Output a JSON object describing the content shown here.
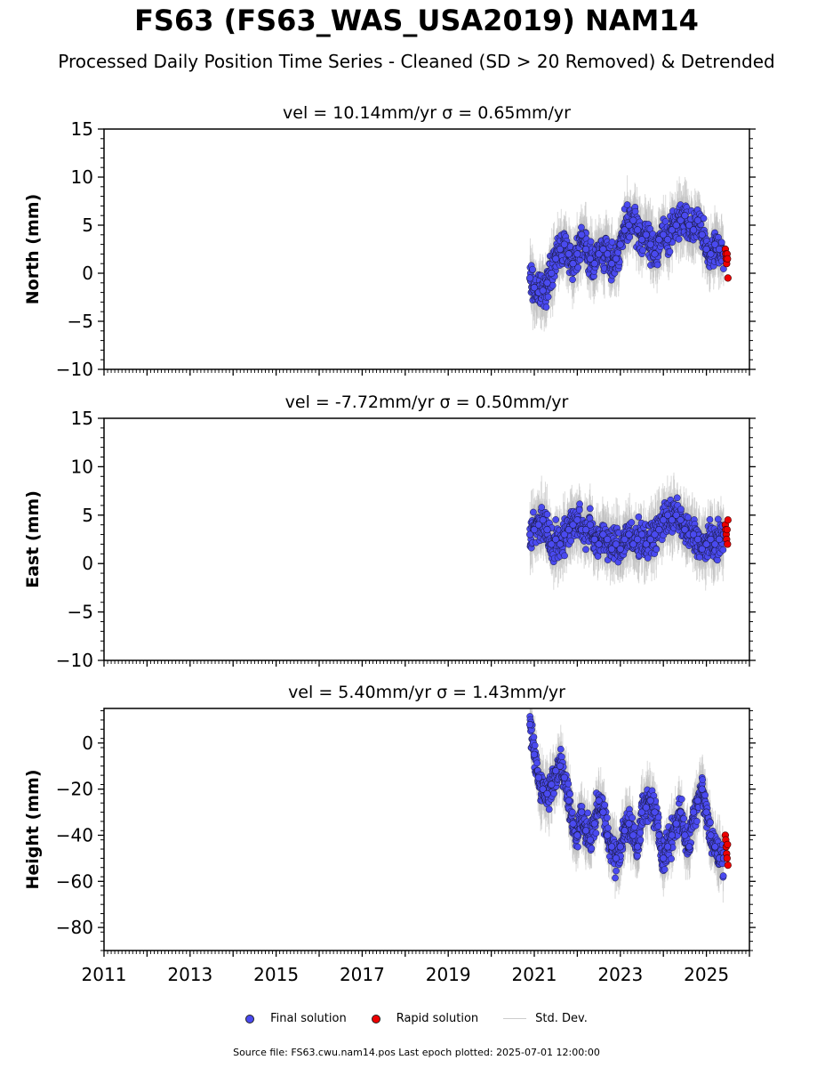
{
  "title": "FS63 (FS63_WAS_USA2019) NAM14",
  "subtitle": "Processed Daily Position Time Series - Cleaned (SD > 20 Removed) & Detrended",
  "colors": {
    "final": "#4a4af0",
    "rapid": "#ee0000",
    "stddev": "#bbbbbb"
  },
  "legend": {
    "final": "Final solution",
    "rapid": "Rapid solution",
    "stddev": "Std. Dev."
  },
  "footer": "Source file: FS63.cwu.nam14.pos  Last epoch plotted: 2025-07-01 12:00:00",
  "chart_data": [
    {
      "type": "scatter",
      "panel": "north",
      "title": "vel = 10.14mm/yr   σ = 0.65mm/yr",
      "ylabel": "North (mm)",
      "xlim": [
        2011,
        2026
      ],
      "ylim": [
        -10,
        15
      ],
      "yticks": [
        -10,
        -5,
        0,
        5,
        10,
        15
      ],
      "ytick_labels": [
        "−10",
        "−5",
        "0",
        "5",
        "10",
        "15"
      ],
      "xticks": [
        2011,
        2013,
        2015,
        2017,
        2019,
        2021,
        2023,
        2025
      ],
      "series": [
        {
          "name": "Final solution",
          "x": [
            2020.9,
            2021.0,
            2021.1,
            2021.2,
            2021.3,
            2021.4,
            2021.5,
            2021.6,
            2021.7,
            2021.8,
            2021.9,
            2022.0,
            2022.1,
            2022.2,
            2022.3,
            2022.4,
            2022.5,
            2022.6,
            2022.7,
            2022.8,
            2022.9,
            2023.0,
            2023.1,
            2023.2,
            2023.3,
            2023.4,
            2023.5,
            2023.6,
            2023.7,
            2023.8,
            2023.9,
            2024.0,
            2024.1,
            2024.2,
            2024.3,
            2024.4,
            2024.5,
            2024.6,
            2024.7,
            2024.8,
            2024.9,
            2025.0,
            2025.1,
            2025.2,
            2025.3,
            2025.4
          ],
          "y": [
            -0.5,
            -1.5,
            -2.0,
            -1.8,
            -1.0,
            0.0,
            1.5,
            2.5,
            3.0,
            2.0,
            1.0,
            2.0,
            4.0,
            2.5,
            1.5,
            1.0,
            2.0,
            2.5,
            2.0,
            1.0,
            1.5,
            3.0,
            4.5,
            5.0,
            5.5,
            4.5,
            3.5,
            4.0,
            3.0,
            2.0,
            3.5,
            4.0,
            3.5,
            4.5,
            5.0,
            5.5,
            6.0,
            5.0,
            4.5,
            5.5,
            4.0,
            2.5,
            2.0,
            3.0,
            2.5,
            2.0
          ]
        },
        {
          "name": "Rapid solution",
          "x": [
            2025.44,
            2025.45,
            2025.46,
            2025.47,
            2025.48,
            2025.49,
            2025.5
          ],
          "y": [
            2.5,
            2.0,
            1.5,
            1.0,
            2.0,
            1.5,
            -0.5
          ]
        }
      ]
    },
    {
      "type": "scatter",
      "panel": "east",
      "title": "vel = -7.72mm/yr   σ = 0.50mm/yr",
      "ylabel": "East (mm)",
      "xlim": [
        2011,
        2026
      ],
      "ylim": [
        -10,
        15
      ],
      "yticks": [
        -10,
        -5,
        0,
        5,
        10,
        15
      ],
      "ytick_labels": [
        "−10",
        "−5",
        "0",
        "5",
        "10",
        "15"
      ],
      "xticks": [
        2011,
        2013,
        2015,
        2017,
        2019,
        2021,
        2023,
        2025
      ],
      "series": [
        {
          "name": "Final solution",
          "x": [
            2020.9,
            2021.0,
            2021.1,
            2021.2,
            2021.3,
            2021.4,
            2021.5,
            2021.6,
            2021.7,
            2021.8,
            2021.9,
            2022.0,
            2022.1,
            2022.2,
            2022.3,
            2022.4,
            2022.5,
            2022.6,
            2022.7,
            2022.8,
            2022.9,
            2023.0,
            2023.1,
            2023.2,
            2023.3,
            2023.4,
            2023.5,
            2023.6,
            2023.7,
            2023.8,
            2023.9,
            2024.0,
            2024.1,
            2024.2,
            2024.3,
            2024.4,
            2024.5,
            2024.6,
            2024.7,
            2024.8,
            2024.9,
            2025.0,
            2025.1,
            2025.2,
            2025.3,
            2025.4
          ],
          "y": [
            3.0,
            3.5,
            4.0,
            4.5,
            3.5,
            2.0,
            2.5,
            2.0,
            3.0,
            3.5,
            4.0,
            4.5,
            3.5,
            3.5,
            4.0,
            2.5,
            2.0,
            3.0,
            2.5,
            1.5,
            2.0,
            1.5,
            2.5,
            3.0,
            2.0,
            2.5,
            3.0,
            2.0,
            2.5,
            3.0,
            3.5,
            4.5,
            5.0,
            4.5,
            5.0,
            4.5,
            3.5,
            3.0,
            3.0,
            2.5,
            1.5,
            2.0,
            2.5,
            2.0,
            2.5,
            3.0
          ]
        },
        {
          "name": "Rapid solution",
          "x": [
            2025.44,
            2025.45,
            2025.46,
            2025.47,
            2025.48,
            2025.49,
            2025.5
          ],
          "y": [
            4.0,
            3.5,
            3.0,
            2.5,
            3.5,
            2.0,
            4.5
          ]
        }
      ]
    },
    {
      "type": "scatter",
      "panel": "height",
      "title": "vel = 5.40mm/yr   σ = 1.43mm/yr",
      "ylabel": "Height (mm)",
      "xlim": [
        2011,
        2026
      ],
      "ylim": [
        -90,
        15
      ],
      "yticks": [
        -80,
        -60,
        -40,
        -20,
        0
      ],
      "ytick_labels": [
        "−80",
        "−60",
        "−40",
        "−20",
        "0"
      ],
      "xticks": [
        2011,
        2013,
        2015,
        2017,
        2019,
        2021,
        2023,
        2025
      ],
      "xtick_labels": [
        "2011",
        "2013",
        "2015",
        "2017",
        "2019",
        "2021",
        "2023",
        "2025"
      ],
      "series": [
        {
          "name": "Final solution",
          "x": [
            2020.9,
            2021.0,
            2021.1,
            2021.2,
            2021.3,
            2021.4,
            2021.5,
            2021.6,
            2021.7,
            2021.8,
            2021.9,
            2022.0,
            2022.1,
            2022.2,
            2022.3,
            2022.4,
            2022.5,
            2022.6,
            2022.7,
            2022.8,
            2022.9,
            2023.0,
            2023.1,
            2023.2,
            2023.3,
            2023.4,
            2023.5,
            2023.6,
            2023.7,
            2023.8,
            2023.9,
            2024.0,
            2024.1,
            2024.2,
            2024.3,
            2024.4,
            2024.5,
            2024.6,
            2024.7,
            2024.8,
            2024.9,
            2025.0,
            2025.1,
            2025.2,
            2025.3,
            2025.4
          ],
          "y": [
            8.0,
            -5.0,
            -15.0,
            -20.0,
            -22.0,
            -18.0,
            -12.0,
            -10.0,
            -15.0,
            -25.0,
            -35.0,
            -40.0,
            -30.0,
            -38.0,
            -42.0,
            -35.0,
            -25.0,
            -30.0,
            -40.0,
            -45.0,
            -50.0,
            -45.0,
            -38.0,
            -35.0,
            -40.0,
            -45.0,
            -30.0,
            -28.0,
            -25.0,
            -30.0,
            -40.0,
            -50.0,
            -45.0,
            -40.0,
            -35.0,
            -30.0,
            -40.0,
            -45.0,
            -30.0,
            -25.0,
            -20.0,
            -30.0,
            -40.0,
            -45.0,
            -50.0,
            -50.0
          ]
        },
        {
          "name": "Rapid solution",
          "x": [
            2025.44,
            2025.45,
            2025.46,
            2025.47,
            2025.48,
            2025.49,
            2025.5
          ],
          "y": [
            -40.0,
            -42.0,
            -45.0,
            -48.0,
            -50.0,
            -44.0,
            -53.0
          ]
        }
      ]
    }
  ]
}
